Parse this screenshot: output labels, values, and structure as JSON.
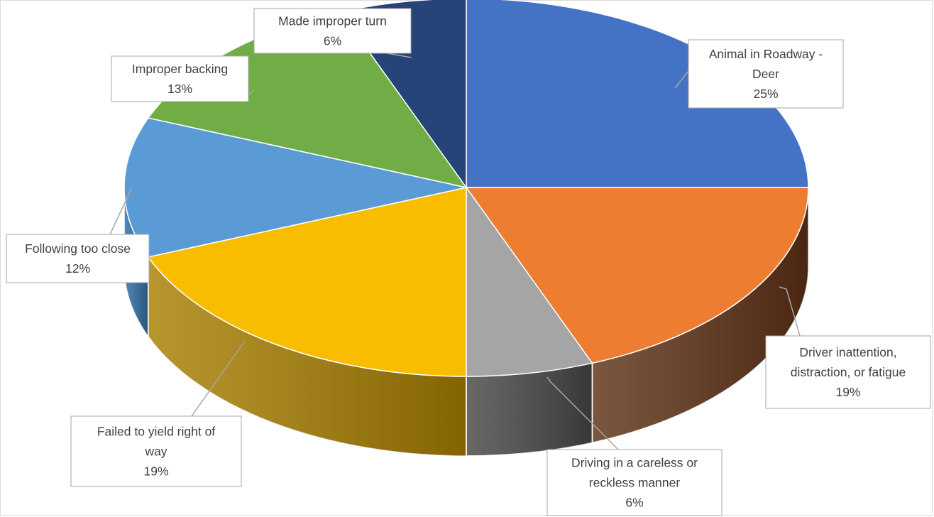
{
  "chart_data": {
    "type": "pie",
    "style": "3d-pie",
    "title": "",
    "legend": "none",
    "slices": [
      {
        "label": "Animal in Roadway - Deer",
        "value": 25,
        "value_label": "25%",
        "color": "#4472C4",
        "side_color": "#2F5597"
      },
      {
        "label": "Driver inattention, distraction, or fatigue",
        "value": 19,
        "value_label": "19%",
        "color": "#ED7D31",
        "side_color": "#5E3115"
      },
      {
        "label": "Driving in a careless or reckless manner",
        "value": 6,
        "value_label": "6%",
        "color": "#A5A5A5",
        "side_color": "#474747"
      },
      {
        "label": "Failed to yield right of way",
        "value": 19,
        "value_label": "19%",
        "color": "#F8BC00",
        "side_color": "#A87F00"
      },
      {
        "label": "Following too close",
        "value": 12,
        "value_label": "12%",
        "color": "#5B9BD5",
        "side_color": "#2E6DA4"
      },
      {
        "label": "Improper backing",
        "value": 13,
        "value_label": "13%",
        "color": "#70AD47",
        "side_color": "#4E7A32"
      },
      {
        "label": "Made improper turn",
        "value": 6,
        "value_label": "6%",
        "color": "#264478",
        "side_color": "#182C4E"
      }
    ]
  }
}
